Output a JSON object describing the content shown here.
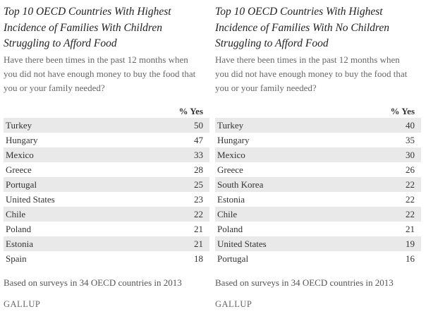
{
  "panels": [
    {
      "title_lines": [
        "Top 10 OECD Countries With Highest",
        "Incidence of Families With Children",
        "Struggling to Afford Food"
      ],
      "question_lines": [
        "Have there been times in the past 12 months when",
        "you did not have enough money to buy the food that",
        "you or your family needed?"
      ],
      "column_header": "% Yes",
      "rows": [
        [
          "Turkey",
          50
        ],
        [
          "Hungary",
          47
        ],
        [
          "Mexico",
          33
        ],
        [
          "Greece",
          28
        ],
        [
          "Portugal",
          25
        ],
        [
          "United States",
          23
        ],
        [
          "Chile",
          22
        ],
        [
          "Poland",
          21
        ],
        [
          "Estonia",
          21
        ],
        [
          "Spain",
          18
        ]
      ],
      "note": "Based on surveys in 34 OECD countries in 2013",
      "logo": "GALLUP"
    },
    {
      "title_lines": [
        "Top 10 OECD Countries With Highest",
        "Incidence of Families With No Children",
        "Struggling to Afford Food"
      ],
      "question_lines": [
        "Have there been times in the past 12 months when",
        "you did not have enough money to buy the food that",
        "you or your family needed?"
      ],
      "column_header": "% Yes",
      "rows": [
        [
          "Turkey",
          40
        ],
        [
          "Hungary",
          35
        ],
        [
          "Mexico",
          30
        ],
        [
          "Greece",
          26
        ],
        [
          "South Korea",
          22
        ],
        [
          "Estonia",
          22
        ],
        [
          "Chile",
          22
        ],
        [
          "Poland",
          21
        ],
        [
          "United States",
          19
        ],
        [
          "Portugal",
          16
        ]
      ],
      "note": "Based on surveys in 34 OECD countries in 2013",
      "logo": "GALLUP"
    }
  ]
}
